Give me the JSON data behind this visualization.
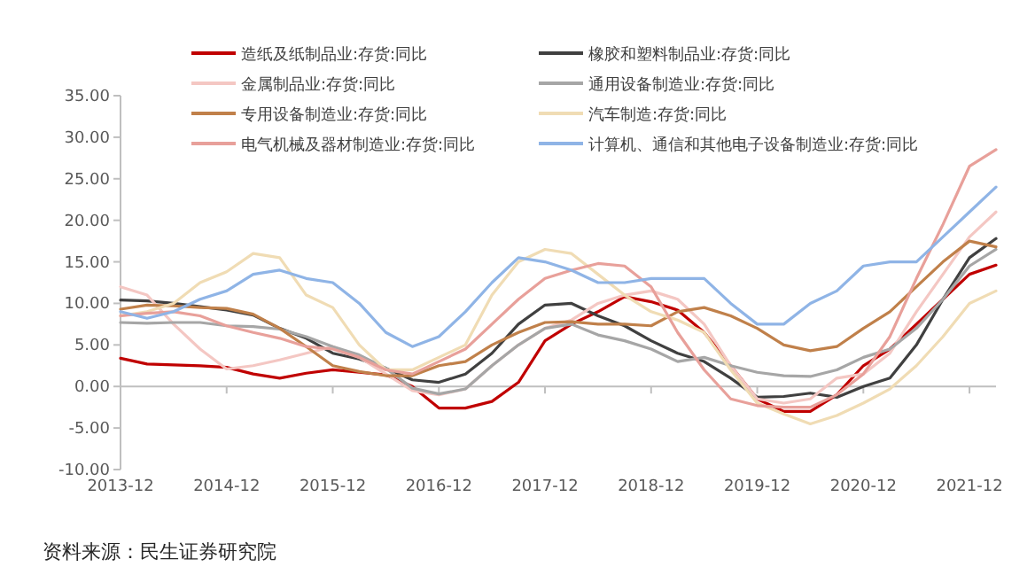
{
  "chart_data": {
    "type": "line",
    "x": [
      "2013-12",
      "2014-03",
      "2014-06",
      "2014-09",
      "2014-12",
      "2015-03",
      "2015-06",
      "2015-09",
      "2015-12",
      "2016-03",
      "2016-06",
      "2016-09",
      "2016-12",
      "2017-03",
      "2017-06",
      "2017-09",
      "2017-12",
      "2018-03",
      "2018-06",
      "2018-09",
      "2018-12",
      "2019-03",
      "2019-06",
      "2019-09",
      "2019-12",
      "2020-03",
      "2020-06",
      "2020-09",
      "2020-12",
      "2021-03",
      "2021-06",
      "2021-09",
      "2021-12",
      "2022-03"
    ],
    "series": [
      {
        "name": "造纸及纸制品业:存货:同比",
        "color": "#c00000",
        "values": [
          3.4,
          2.7,
          2.6,
          2.5,
          2.3,
          1.5,
          1.0,
          1.6,
          2.0,
          1.7,
          1.4,
          0.0,
          -2.6,
          -2.6,
          -1.8,
          0.5,
          5.5,
          7.5,
          9.0,
          10.8,
          10.2,
          9.2,
          6.5,
          2.5,
          -1.5,
          -3.0,
          -3.0,
          -1.0,
          2.5,
          4.5,
          7.5,
          10.5,
          13.5,
          14.6
        ]
      },
      {
        "name": "橡胶和塑料制品业:存货:同比",
        "color": "#404040",
        "values": [
          10.4,
          10.3,
          10.0,
          9.6,
          9.2,
          8.6,
          7.0,
          5.8,
          4.0,
          3.3,
          2.2,
          0.8,
          0.5,
          1.5,
          4.0,
          7.5,
          9.8,
          10.0,
          8.5,
          7.3,
          5.5,
          4.0,
          3.0,
          1.0,
          -1.3,
          -1.2,
          -0.8,
          -1.3,
          0.0,
          1.0,
          5.0,
          10.5,
          15.5,
          17.8
        ]
      },
      {
        "name": "金属制品业:存货:同比",
        "color": "#f4c7c3",
        "values": [
          12.0,
          11.0,
          7.5,
          4.5,
          2.1,
          2.5,
          3.2,
          4.0,
          4.8,
          3.5,
          1.5,
          -0.5,
          -1.0,
          -0.3,
          2.5,
          5.0,
          7.0,
          8.0,
          10.0,
          11.0,
          11.5,
          10.5,
          7.5,
          2.5,
          -1.5,
          -2.0,
          -1.5,
          1.0,
          1.5,
          4.0,
          9.0,
          13.5,
          18.0,
          21.0
        ]
      },
      {
        "name": "通用设备制造业:存货:同比",
        "color": "#a6a6a6",
        "values": [
          7.7,
          7.6,
          7.7,
          7.7,
          7.3,
          7.2,
          6.9,
          6.0,
          4.8,
          3.8,
          2.2,
          -0.2,
          -0.9,
          -0.3,
          2.5,
          5.0,
          7.0,
          7.5,
          6.2,
          5.5,
          4.5,
          3.0,
          3.5,
          2.5,
          1.7,
          1.3,
          1.2,
          2.0,
          3.5,
          4.5,
          7.0,
          10.5,
          14.5,
          16.5
        ]
      },
      {
        "name": "专用设备制造业:存货:同比",
        "color": "#c0804a",
        "values": [
          9.3,
          9.8,
          9.7,
          9.5,
          9.4,
          8.7,
          7.0,
          4.8,
          2.5,
          1.8,
          1.3,
          1.3,
          2.5,
          3.0,
          5.0,
          6.5,
          7.7,
          7.8,
          7.5,
          7.5,
          7.3,
          9.0,
          9.5,
          8.5,
          7.0,
          5.0,
          4.3,
          4.8,
          7.0,
          9.0,
          12.0,
          15.0,
          17.5,
          16.8
        ]
      },
      {
        "name": "汽车制造:存货:同比",
        "color": "#f0dcb4",
        "values": [
          8.5,
          9.0,
          10.0,
          12.5,
          13.8,
          16.0,
          15.5,
          11.0,
          9.5,
          5.0,
          2.0,
          2.0,
          3.5,
          5.0,
          11.0,
          15.0,
          16.5,
          16.0,
          13.5,
          11.0,
          9.0,
          8.0,
          6.5,
          2.0,
          -2.0,
          -3.3,
          -4.5,
          -3.5,
          -2.0,
          -0.3,
          2.5,
          6.0,
          10.0,
          11.5
        ]
      },
      {
        "name": "电气机械及器材制造业:存货:同比",
        "color": "#e8a09a",
        "values": [
          8.5,
          8.8,
          9.0,
          8.5,
          7.3,
          6.5,
          5.8,
          4.8,
          4.5,
          3.5,
          2.0,
          1.5,
          3.0,
          4.5,
          7.5,
          10.5,
          13.0,
          14.0,
          14.8,
          14.5,
          12.0,
          6.5,
          2.0,
          -1.5,
          -2.3,
          -2.5,
          -2.5,
          -1.0,
          1.5,
          6.0,
          13.0,
          19.5,
          26.5,
          28.5
        ]
      },
      {
        "name": "计算机、通信和其他电子设备制造业:存货:同比",
        "color": "#8fb4e6",
        "values": [
          9.0,
          8.2,
          9.0,
          10.5,
          11.5,
          13.5,
          14.0,
          13.0,
          12.5,
          10.0,
          6.5,
          4.8,
          6.0,
          9.0,
          12.5,
          15.5,
          15.0,
          14.0,
          12.5,
          12.5,
          13.0,
          13.0,
          13.0,
          10.0,
          7.5,
          7.5,
          10.0,
          11.5,
          14.5,
          15.0,
          15.0,
          18.0,
          21.0,
          24.0
        ]
      }
    ],
    "xlim": [
      "2013-12",
      "2022-03"
    ],
    "xticks": [
      "2013-12",
      "2014-12",
      "2015-12",
      "2016-12",
      "2017-12",
      "2018-12",
      "2019-12",
      "2020-12",
      "2021-12"
    ],
    "ylim": [
      -10,
      35
    ],
    "yticks": [
      {
        "value": -10,
        "label": "-10.00"
      },
      {
        "value": -5,
        "label": "-5.00"
      },
      {
        "value": 0,
        "label": "0.00"
      },
      {
        "value": 5,
        "label": "5.00"
      },
      {
        "value": 10,
        "label": "10.00"
      },
      {
        "value": 15,
        "label": "15.00"
      },
      {
        "value": 20,
        "label": "20.00"
      },
      {
        "value": 25,
        "label": "25.00"
      },
      {
        "value": 30,
        "label": "30.00"
      },
      {
        "value": 35,
        "label": "35.00"
      }
    ],
    "legend": "top",
    "annotations": [
      "资料来源：民生证券研究院"
    ]
  }
}
